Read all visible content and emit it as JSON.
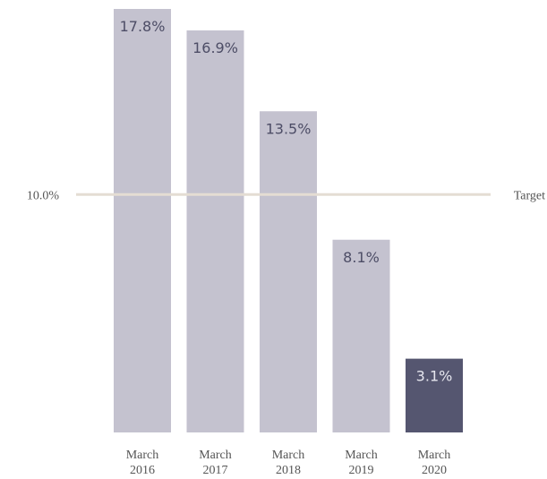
{
  "chart_data": {
    "type": "bar",
    "categories": [
      [
        "March",
        "2016"
      ],
      [
        "March",
        "2017"
      ],
      [
        "March",
        "2018"
      ],
      [
        "March",
        "2019"
      ],
      [
        "March",
        "2020"
      ]
    ],
    "values": [
      17.8,
      16.9,
      13.5,
      8.1,
      3.1
    ],
    "value_labels": [
      "17.8%",
      "16.9%",
      "13.5%",
      "8.1%",
      "3.1%"
    ],
    "ylim": [
      0,
      17.8
    ],
    "grid": false,
    "title": "",
    "xlabel": "",
    "ylabel": "",
    "target": {
      "value": 10.0,
      "value_label": "10.0%",
      "name": "Target"
    },
    "highlight_index": 4
  },
  "colors": {
    "bar": "#c4c2cf",
    "bar_highlight": "#555670",
    "bar_label": "#4d4d66",
    "bar_label_highlight": "#e6e6ee",
    "target_line": "#e4ddd3",
    "axis_text": "#555555"
  }
}
